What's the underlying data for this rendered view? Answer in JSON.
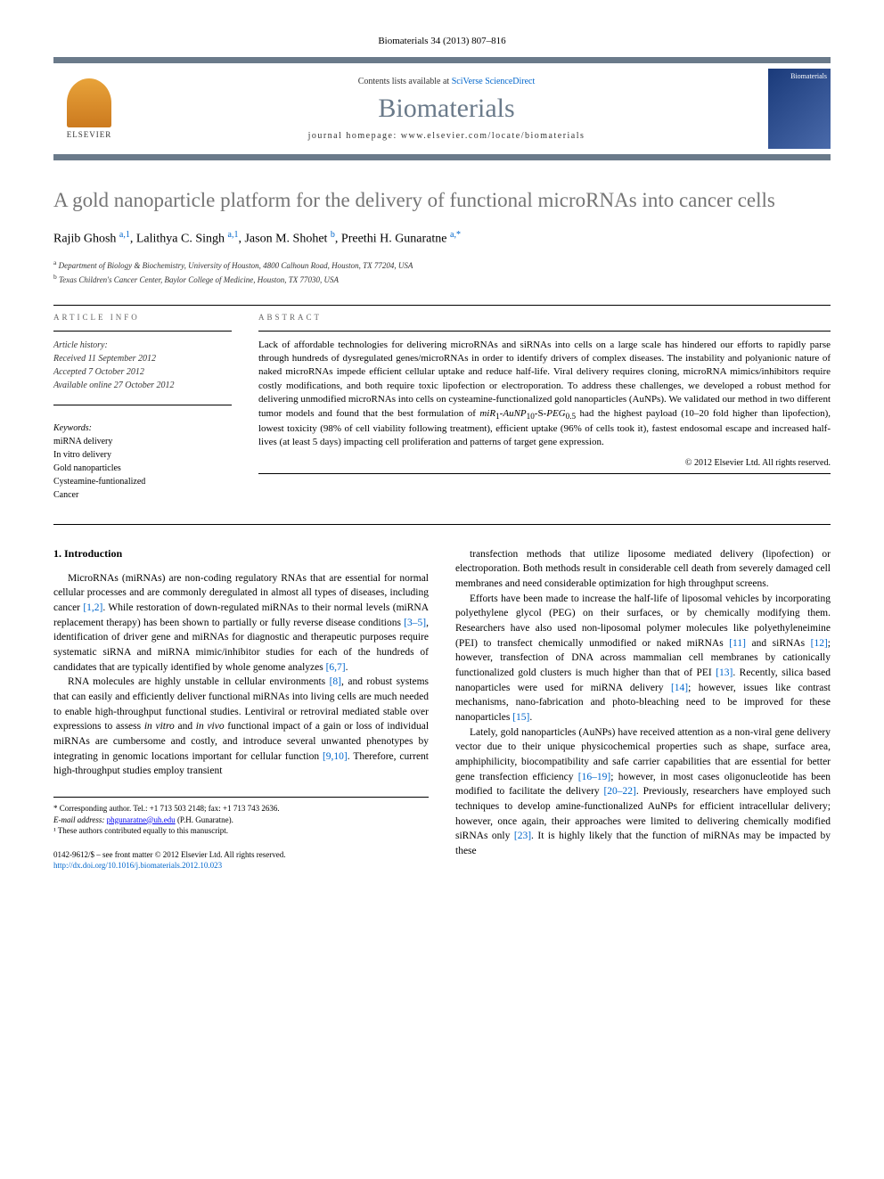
{
  "citation": "Biomaterials 34 (2013) 807–816",
  "header": {
    "publisher_name": "ELSEVIER",
    "contents_prefix": "Contents lists available at ",
    "contents_link": "SciVerse ScienceDirect",
    "journal_title": "Biomaterials",
    "homepage_prefix": "journal homepage: ",
    "homepage_url": "www.elsevier.com/locate/biomaterials",
    "cover_label": "Biomaterials"
  },
  "article": {
    "title": "A gold nanoparticle platform for the delivery of functional microRNAs into cancer cells",
    "authors_html": "Rajib Ghosh <sup>a,1</sup>, Lalithya C. Singh <sup>a,1</sup>, Jason M. Shohet <sup>b</sup>, Preethi H. Gunaratne <sup>a,*</sup>",
    "affiliations": [
      {
        "marker": "a",
        "text": "Department of Biology & Biochemistry, University of Houston, 4800 Calhoun Road, Houston, TX 77204, USA"
      },
      {
        "marker": "b",
        "text": "Texas Children's Cancer Center, Baylor College of Medicine, Houston, TX 77030, USA"
      }
    ]
  },
  "article_info": {
    "label": "ARTICLE INFO",
    "history_label": "Article history:",
    "received": "Received 11 September 2012",
    "accepted": "Accepted 7 October 2012",
    "online": "Available online 27 October 2012",
    "keywords_label": "Keywords:",
    "keywords": [
      "miRNA delivery",
      "In vitro delivery",
      "Gold nanoparticles",
      "Cysteamine-funtionalized",
      "Cancer"
    ]
  },
  "abstract": {
    "label": "ABSTRACT",
    "text": "Lack of affordable technologies for delivering microRNAs and siRNAs into cells on a large scale has hindered our efforts to rapidly parse through hundreds of dysregulated genes/microRNAs in order to identify drivers of complex diseases. The instability and polyanionic nature of naked microRNAs impede efficient cellular uptake and reduce half-life. Viral delivery requires cloning, microRNA mimics/inhibitors require costly modifications, and both require toxic lipofection or electroporation. To address these challenges, we developed a robust method for delivering unmodified microRNAs into cells on cysteamine-functionalized gold nanoparticles (AuNPs). We validated our method in two different tumor models and found that the best formulation of miR₁-AuNP₁₀-S-PEG₀.₅ had the highest payload (10–20 fold higher than lipofection), lowest toxicity (98% of cell viability following treatment), efficient uptake (96% of cells took it), fastest endosomal escape and increased half-lives (at least 5 days) impacting cell proliferation and patterns of target gene expression.",
    "copyright": "© 2012 Elsevier Ltd. All rights reserved."
  },
  "body": {
    "section_number": "1.",
    "section_title": "Introduction",
    "col1": [
      "MicroRNAs (miRNAs) are non-coding regulatory RNAs that are essential for normal cellular processes and are commonly deregulated in almost all types of diseases, including cancer [1,2]. While restoration of down-regulated miRNAs to their normal levels (miRNA replacement therapy) has been shown to partially or fully reverse disease conditions [3–5], identification of driver gene and miRNAs for diagnostic and therapeutic purposes require systematic siRNA and miRNA mimic/inhibitor studies for each of the hundreds of candidates that are typically identified by whole genome analyzes [6,7].",
      "RNA molecules are highly unstable in cellular environments [8], and robust systems that can easily and efficiently deliver functional miRNAs into living cells are much needed to enable high-throughput functional studies. Lentiviral or retroviral mediated stable over expressions to assess in vitro and in vivo functional impact of a gain or loss of individual miRNAs are cumbersome and costly, and introduce several unwanted phenotypes by integrating in genomic locations important for cellular function [9,10]. Therefore, current high-throughput studies employ transient"
    ],
    "col2": [
      "transfection methods that utilize liposome mediated delivery (lipofection) or electroporation. Both methods result in considerable cell death from severely damaged cell membranes and need considerable optimization for high throughput screens.",
      "Efforts have been made to increase the half-life of liposomal vehicles by incorporating polyethylene glycol (PEG) on their surfaces, or by chemically modifying them. Researchers have also used non-liposomal polymer molecules like polyethyleneimine (PEI) to transfect chemically unmodified or naked miRNAs [11] and siRNAs [12]; however, transfection of DNA across mammalian cell membranes by cationically functionalized gold clusters is much higher than that of PEI [13]. Recently, silica based nanoparticles were used for miRNA delivery [14]; however, issues like contrast mechanisms, nano-fabrication and photo-bleaching need to be improved for these nanoparticles [15].",
      "Lately, gold nanoparticles (AuNPs) have received attention as a non-viral gene delivery vector due to their unique physicochemical properties such as shape, surface area, amphiphilicity, biocompatibility and safe carrier capabilities that are essential for better gene transfection efficiency [16–19]; however, in most cases oligonucleotide has been modified to facilitate the delivery [20–22]. Previously, researchers have employed such techniques to develop amine-functionalized AuNPs for efficient intracellular delivery; however, once again, their approaches were limited to delivering chemically modified siRNAs only [23]. It is highly likely that the function of miRNAs may be impacted by these"
    ]
  },
  "footnotes": {
    "corresponding": "* Corresponding author. Tel.: +1 713 503 2148; fax: +1 713 743 2636.",
    "email_label": "E-mail address:",
    "email": "phgunaratne@uh.edu",
    "email_suffix": "(P.H. Gunaratne).",
    "equal": "¹ These authors contributed equally to this manuscript."
  },
  "footer": {
    "issn_line": "0142-9612/$ – see front matter © 2012 Elsevier Ltd. All rights reserved.",
    "doi_url": "http://dx.doi.org/10.1016/j.biomaterials.2012.10.023"
  },
  "colors": {
    "header_border": "#6a7a8a",
    "journal_title": "#6a7a8a",
    "article_title": "#757575",
    "link": "#0066cc",
    "text": "#000000",
    "logo_gradient_start": "#e8a33a",
    "logo_gradient_end": "#cc7a1f",
    "cover_gradient_start": "#1a3a7a",
    "cover_gradient_end": "#4a6aaa"
  },
  "refs": {
    "r1_2": "[1,2]",
    "r3_5": "[3–5]",
    "r6_7": "[6,7]",
    "r8": "[8]",
    "r9_10": "[9,10]",
    "r11": "[11]",
    "r12": "[12]",
    "r13": "[13]",
    "r14": "[14]",
    "r15": "[15]",
    "r16_19": "[16–19]",
    "r20_22": "[20–22]",
    "r23": "[23]"
  }
}
